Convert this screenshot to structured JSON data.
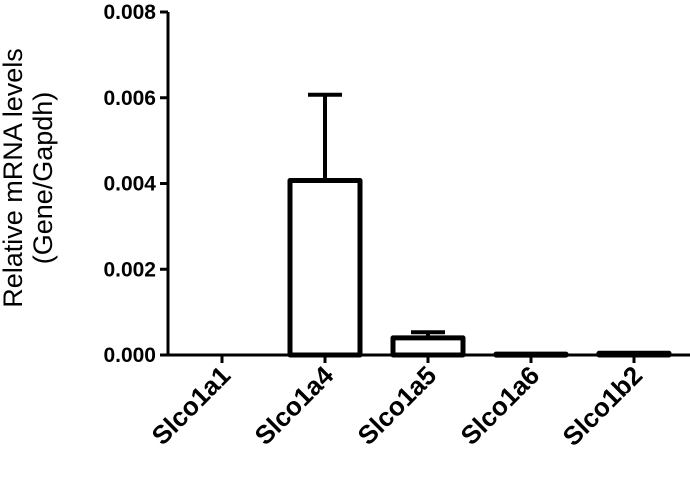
{
  "chart_data": {
    "type": "bar",
    "title": "",
    "xlabel": "",
    "ylabel": "Relative mRNA levels (Gene/Gapdh)",
    "ylabel_lines": [
      "Relative mRNA levels",
      "(Gene/Gapdh)"
    ],
    "categories": [
      "Slco1a1",
      "Slco1a4",
      "Slco1a5",
      "Slco1a6",
      "Slco1b2"
    ],
    "values": [
      0.0,
      0.00407,
      0.0004,
      2e-05,
      4e-05
    ],
    "error_upper": [
      0.0,
      0.00607,
      0.00053,
      2e-05,
      4e-05
    ],
    "ylim": [
      0,
      0.008
    ],
    "yticks": [
      0.0,
      0.002,
      0.004,
      0.006,
      0.008
    ],
    "ytick_labels": [
      "0.000",
      "0.002",
      "0.004",
      "0.006",
      "0.008"
    ],
    "grid": false,
    "legend": null,
    "bar_fill": "#ffffff",
    "bar_edge": "#000000"
  }
}
